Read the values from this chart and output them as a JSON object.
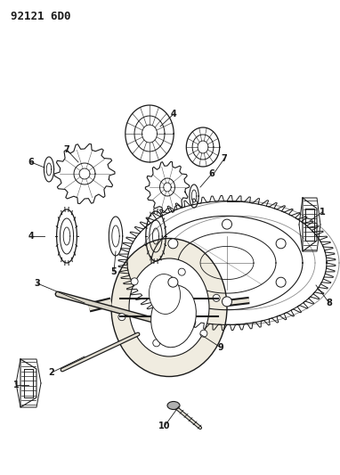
{
  "title": "92121 6D0",
  "bg": "#ffffff",
  "lc": "#1a1a1a",
  "fig_width": 3.82,
  "fig_height": 5.33,
  "dpi": 100
}
